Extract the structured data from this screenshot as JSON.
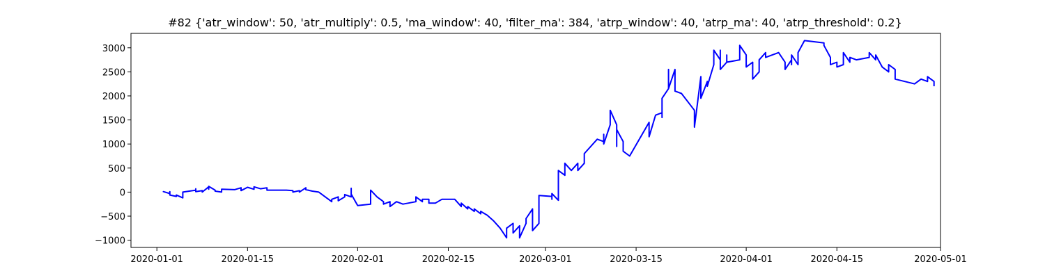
{
  "chart_data": {
    "type": "line",
    "title": "#82 {'atr_window': 50, 'atr_multiply': 0.5, 'ma_window': 40, 'filter_ma': 384, 'atrp_window': 40, 'atrp_ma': 40, 'atrp_threshold': 0.2}",
    "xlabel": "",
    "ylabel": "",
    "grid": false,
    "legend": "none",
    "x_range": [
      "2019-12-28",
      "2020-05-01"
    ],
    "ylim": [
      -1150,
      3300
    ],
    "x_ticks": [
      "2020-01-01",
      "2020-01-15",
      "2020-02-01",
      "2020-02-15",
      "2020-03-01",
      "2020-03-15",
      "2020-04-01",
      "2020-04-15",
      "2020-05-01"
    ],
    "y_ticks": [
      -1000,
      -500,
      0,
      500,
      1000,
      1500,
      2000,
      2500,
      3000
    ],
    "series": [
      {
        "color": "#0000ff",
        "points": [
          [
            "2020-01-02",
            0
          ],
          [
            "2020-01-02",
            10
          ],
          [
            "2020-01-03",
            -30
          ],
          [
            "2020-01-03",
            10
          ],
          [
            "2020-01-03",
            -60
          ],
          [
            "2020-01-04",
            -90
          ],
          [
            "2020-01-04",
            -60
          ],
          [
            "2020-01-05",
            -120
          ],
          [
            "2020-01-05",
            0
          ],
          [
            "2020-01-07",
            40
          ],
          [
            "2020-01-07",
            70
          ],
          [
            "2020-01-07",
            10
          ],
          [
            "2020-01-08",
            30
          ],
          [
            "2020-01-08",
            0
          ],
          [
            "2020-01-09",
            110
          ],
          [
            "2020-01-09",
            60
          ],
          [
            "2020-01-09",
            120
          ],
          [
            "2020-01-10",
            40
          ],
          [
            "2020-01-10",
            20
          ],
          [
            "2020-01-11",
            0
          ],
          [
            "2020-01-11",
            60
          ],
          [
            "2020-01-13",
            50
          ],
          [
            "2020-01-14",
            90
          ],
          [
            "2020-01-14",
            30
          ],
          [
            "2020-01-15",
            100
          ],
          [
            "2020-01-16",
            60
          ],
          [
            "2020-01-16",
            110
          ],
          [
            "2020-01-17",
            70
          ],
          [
            "2020-01-18",
            90
          ],
          [
            "2020-01-18",
            40
          ],
          [
            "2020-01-21",
            40
          ],
          [
            "2020-01-22",
            30
          ],
          [
            "2020-01-22",
            0
          ],
          [
            "2020-01-23",
            30
          ],
          [
            "2020-01-23",
            0
          ],
          [
            "2020-01-24",
            90
          ],
          [
            "2020-01-24",
            50
          ],
          [
            "2020-01-25",
            20
          ],
          [
            "2020-01-26",
            0
          ],
          [
            "2020-01-27",
            -100
          ],
          [
            "2020-01-28",
            -200
          ],
          [
            "2020-01-28",
            -150
          ],
          [
            "2020-01-29",
            -100
          ],
          [
            "2020-01-29",
            -180
          ],
          [
            "2020-01-30",
            -100
          ],
          [
            "2020-01-30",
            -50
          ],
          [
            "2020-01-31",
            -100
          ],
          [
            "2020-01-31",
            80
          ],
          [
            "2020-01-31",
            -40
          ],
          [
            "2020-02-01",
            -280
          ],
          [
            "2020-02-03",
            -250
          ],
          [
            "2020-02-03",
            -150
          ],
          [
            "2020-02-03",
            40
          ],
          [
            "2020-02-04",
            -100
          ],
          [
            "2020-02-05",
            -200
          ],
          [
            "2020-02-05",
            -250
          ],
          [
            "2020-02-06",
            -200
          ],
          [
            "2020-02-06",
            -300
          ],
          [
            "2020-02-07",
            -200
          ],
          [
            "2020-02-08",
            -250
          ],
          [
            "2020-02-10",
            -200
          ],
          [
            "2020-02-10",
            -100
          ],
          [
            "2020-02-11",
            -200
          ],
          [
            "2020-02-11",
            -150
          ],
          [
            "2020-02-12",
            -150
          ],
          [
            "2020-02-12",
            -230
          ],
          [
            "2020-02-13",
            -230
          ],
          [
            "2020-02-14",
            -150
          ],
          [
            "2020-02-16",
            -150
          ],
          [
            "2020-02-17",
            -300
          ],
          [
            "2020-02-17",
            -230
          ],
          [
            "2020-02-18",
            -350
          ],
          [
            "2020-02-18",
            -300
          ],
          [
            "2020-02-19",
            -400
          ],
          [
            "2020-02-19",
            -350
          ],
          [
            "2020-02-20",
            -450
          ],
          [
            "2020-02-20",
            -400
          ],
          [
            "2020-02-21",
            -480
          ],
          [
            "2020-02-22",
            -600
          ],
          [
            "2020-02-23",
            -750
          ],
          [
            "2020-02-24",
            -950
          ],
          [
            "2020-02-24",
            -750
          ],
          [
            "2020-02-25",
            -650
          ],
          [
            "2020-02-25",
            -850
          ],
          [
            "2020-02-26",
            -700
          ],
          [
            "2020-02-26",
            -950
          ],
          [
            "2020-02-27",
            -650
          ],
          [
            "2020-02-27",
            -550
          ],
          [
            "2020-02-28",
            -350
          ],
          [
            "2020-02-28",
            -700
          ],
          [
            "2020-02-28",
            -800
          ],
          [
            "2020-02-29",
            -650
          ],
          [
            "2020-02-29",
            -70
          ],
          [
            "2020-03-02",
            -90
          ],
          [
            "2020-03-02",
            -150
          ],
          [
            "2020-03-02",
            -30
          ],
          [
            "2020-03-03",
            -170
          ],
          [
            "2020-03-03",
            -100
          ],
          [
            "2020-03-03",
            350
          ],
          [
            "2020-03-03",
            450
          ],
          [
            "2020-03-04",
            350
          ],
          [
            "2020-03-04",
            600
          ],
          [
            "2020-03-05",
            450
          ],
          [
            "2020-03-06",
            600
          ],
          [
            "2020-03-06",
            450
          ],
          [
            "2020-03-07",
            600
          ],
          [
            "2020-03-07",
            800
          ],
          [
            "2020-03-09",
            1100
          ],
          [
            "2020-03-10",
            1050
          ],
          [
            "2020-03-10",
            1200
          ],
          [
            "2020-03-10",
            1000
          ],
          [
            "2020-03-11",
            1400
          ],
          [
            "2020-03-11",
            1700
          ],
          [
            "2020-03-12",
            1400
          ],
          [
            "2020-03-12",
            950
          ],
          [
            "2020-03-12",
            1300
          ],
          [
            "2020-03-13",
            1050
          ],
          [
            "2020-03-13",
            850
          ],
          [
            "2020-03-14",
            750
          ],
          [
            "2020-03-17",
            1450
          ],
          [
            "2020-03-17",
            1150
          ],
          [
            "2020-03-18",
            1600
          ],
          [
            "2020-03-19",
            1650
          ],
          [
            "2020-03-19",
            1550
          ],
          [
            "2020-03-19",
            1950
          ],
          [
            "2020-03-20",
            2150
          ],
          [
            "2020-03-20",
            2550
          ],
          [
            "2020-03-20",
            2150
          ],
          [
            "2020-03-21",
            2550
          ],
          [
            "2020-03-21",
            2100
          ],
          [
            "2020-03-22",
            2050
          ],
          [
            "2020-03-24",
            1700
          ],
          [
            "2020-03-24",
            1550
          ],
          [
            "2020-03-24",
            1350
          ],
          [
            "2020-03-25",
            2400
          ],
          [
            "2020-03-25",
            2300
          ],
          [
            "2020-03-25",
            1950
          ],
          [
            "2020-03-26",
            2300
          ],
          [
            "2020-03-26",
            2200
          ],
          [
            "2020-03-27",
            2650
          ],
          [
            "2020-03-27",
            2950
          ],
          [
            "2020-03-28",
            2750
          ],
          [
            "2020-03-28",
            2950
          ],
          [
            "2020-03-28",
            2550
          ],
          [
            "2020-03-29",
            2700
          ],
          [
            "2020-03-29",
            2850
          ],
          [
            "2020-03-29",
            2700
          ],
          [
            "2020-03-31",
            2750
          ],
          [
            "2020-03-31",
            3050
          ],
          [
            "2020-04-01",
            2850
          ],
          [
            "2020-04-01",
            2600
          ],
          [
            "2020-04-02",
            2700
          ],
          [
            "2020-04-02",
            2350
          ],
          [
            "2020-04-03",
            2500
          ],
          [
            "2020-04-03",
            2750
          ],
          [
            "2020-04-04",
            2900
          ],
          [
            "2020-04-04",
            2800
          ],
          [
            "2020-04-06",
            2900
          ],
          [
            "2020-04-07",
            2700
          ],
          [
            "2020-04-07",
            2550
          ],
          [
            "2020-04-08",
            2750
          ],
          [
            "2020-04-08",
            2650
          ],
          [
            "2020-04-08",
            2850
          ],
          [
            "2020-04-09",
            2650
          ],
          [
            "2020-04-09",
            2900
          ],
          [
            "2020-04-10",
            3150
          ],
          [
            "2020-04-13",
            3100
          ],
          [
            "2020-04-13",
            3050
          ],
          [
            "2020-04-14",
            2800
          ],
          [
            "2020-04-14",
            2650
          ],
          [
            "2020-04-15",
            2700
          ],
          [
            "2020-04-15",
            2600
          ],
          [
            "2020-04-16",
            2650
          ],
          [
            "2020-04-16",
            2900
          ],
          [
            "2020-04-17",
            2700
          ],
          [
            "2020-04-17",
            2800
          ],
          [
            "2020-04-18",
            2750
          ],
          [
            "2020-04-20",
            2800
          ],
          [
            "2020-04-20",
            2900
          ],
          [
            "2020-04-21",
            2750
          ],
          [
            "2020-04-21",
            2850
          ],
          [
            "2020-04-22",
            2600
          ],
          [
            "2020-04-23",
            2500
          ],
          [
            "2020-04-23",
            2650
          ],
          [
            "2020-04-24",
            2550
          ],
          [
            "2020-04-24",
            2350
          ],
          [
            "2020-04-27",
            2250
          ],
          [
            "2020-04-28",
            2350
          ],
          [
            "2020-04-29",
            2300
          ],
          [
            "2020-04-29",
            2400
          ],
          [
            "2020-04-30",
            2300
          ],
          [
            "2020-04-30",
            2200
          ]
        ]
      }
    ]
  }
}
